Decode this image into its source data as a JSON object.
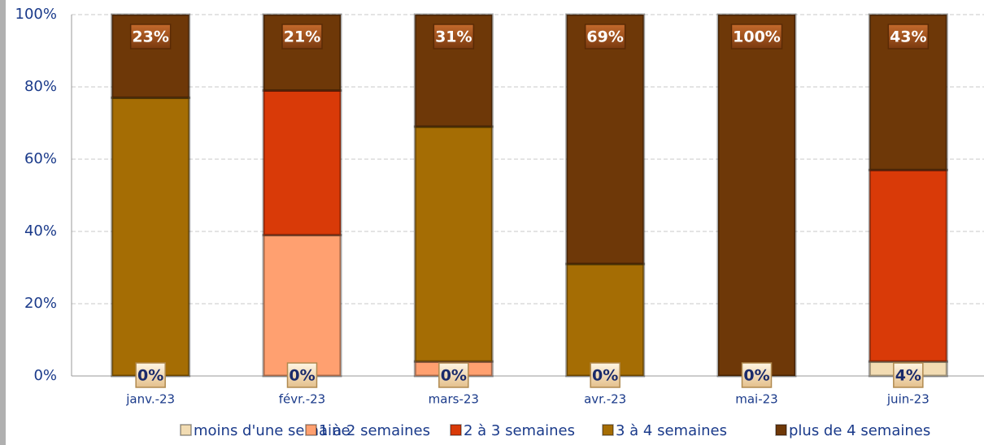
{
  "chart_data": {
    "type": "stacked_bar",
    "categories": [
      "janv.-23",
      "févr.-23",
      "mars-23",
      "avr.-23",
      "mai-23",
      "juin-23"
    ],
    "series": [
      {
        "name": "moins d'une semaine",
        "color": "#f2dcb3",
        "values": [
          0,
          0,
          0,
          0,
          0,
          4
        ],
        "value_labels": [
          "0%",
          "0%",
          "0%",
          "0%",
          "0%",
          "4%"
        ]
      },
      {
        "name": "1 à 2 semaines",
        "color": "#ffa070",
        "values": [
          0,
          39,
          4,
          0,
          0,
          0
        ]
      },
      {
        "name": "2 à 3 semaines",
        "color": "#d93a08",
        "values": [
          0,
          40,
          0,
          0,
          0,
          53
        ]
      },
      {
        "name": "3 à 4 semaines",
        "color": "#a56d04",
        "values": [
          77,
          0,
          65,
          31,
          0,
          0
        ]
      },
      {
        "name": "plus de 4 semaines",
        "color": "#6e3808",
        "values": [
          23,
          21,
          31,
          69,
          100,
          43
        ],
        "value_labels": [
          "23%",
          "21%",
          "31%",
          "69%",
          "100%",
          "43%"
        ]
      }
    ],
    "ylim": [
      0,
      100
    ],
    "yticks": [
      {
        "value": 0,
        "label": "0%"
      },
      {
        "value": 20,
        "label": "20%"
      },
      {
        "value": 40,
        "label": "40%"
      },
      {
        "value": 60,
        "label": "60%"
      },
      {
        "value": 80,
        "label": "80%"
      },
      {
        "value": 100,
        "label": "100%"
      }
    ],
    "grid": true,
    "legend": "bottom"
  }
}
